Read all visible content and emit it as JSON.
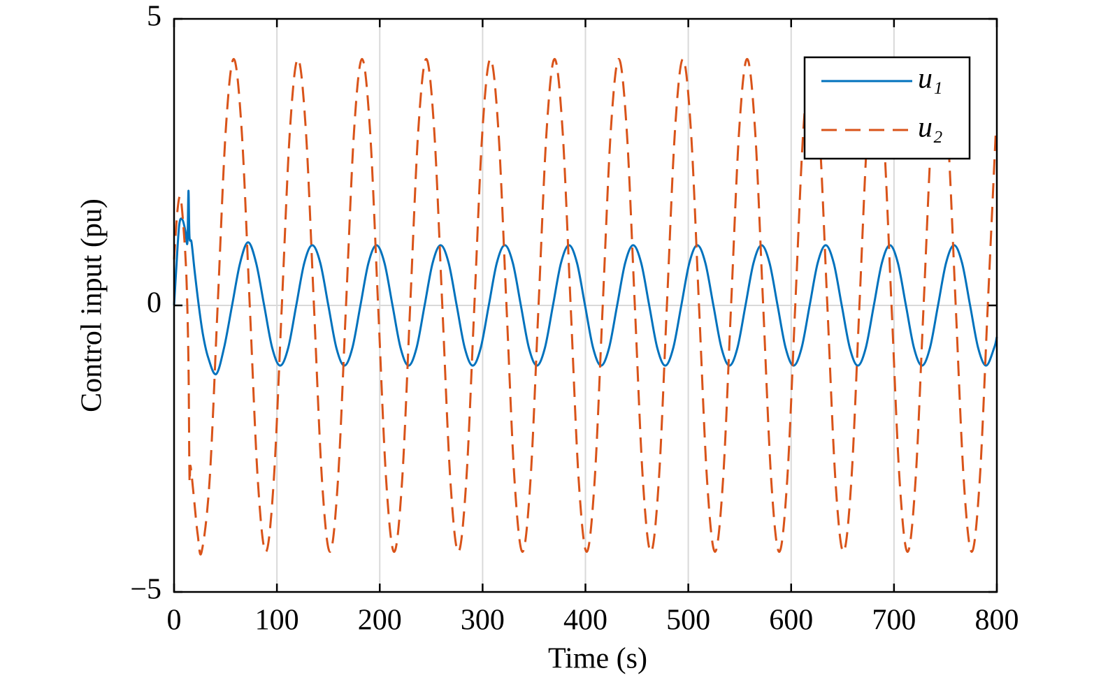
{
  "chart_data": {
    "type": "line",
    "xlabel": "Time (s)",
    "ylabel": "Control input (pu)",
    "xlim": [
      0,
      800
    ],
    "ylim": [
      -5,
      5
    ],
    "xticks": [
      0,
      100,
      200,
      300,
      400,
      500,
      600,
      700,
      800
    ],
    "yticks": [
      {
        "value": -5,
        "label": "−5"
      },
      0,
      5
    ],
    "grid": true,
    "legend": "upper right",
    "series": [
      {
        "name": "u₁",
        "color": "#0072BD",
        "dash": false,
        "x": [
          0,
          2,
          5,
          8,
          11,
          13,
          14,
          15,
          17,
          20,
          24,
          28,
          33,
          40.8,
          48.6,
          56.4,
          64.2,
          72,
          79.8,
          87.6,
          95.4,
          103.2,
          111,
          118.8,
          126.6,
          134.4,
          142.2,
          150,
          157.8,
          165.6,
          173.4,
          181.2,
          189,
          196.8,
          204.6,
          212.4,
          220.2,
          228,
          235.8,
          243.6,
          251.4,
          259.2,
          267,
          274.8,
          282.6,
          290.4,
          298.2,
          306,
          313.8,
          321.6,
          329.4,
          337.2,
          345,
          352.8,
          360.6,
          368.4,
          376.2,
          384,
          391.8,
          399.6,
          407.4,
          415.2,
          423,
          430.8,
          438.6,
          446.4,
          454.2,
          462,
          469.8,
          477.6,
          485.4,
          493.2,
          501,
          508.8,
          516.6,
          524.4,
          532.2,
          540,
          547.8,
          555.6,
          563.4,
          571.2,
          579,
          586.8,
          594.6,
          602.4,
          610.2,
          618,
          625.8,
          633.6,
          641.4,
          649.2,
          657,
          664.8,
          672.6,
          680.4,
          688.2,
          696,
          703.8,
          711.6,
          719.4,
          727.2,
          735,
          742.8,
          750.6,
          758.4,
          766.2,
          774,
          781.8,
          789.6,
          797.4,
          800
        ],
        "values": [
          0,
          0.6,
          1.4,
          1.5,
          1.3,
          1.1,
          2.0,
          1.2,
          1.1,
          0.6,
          0,
          -0.5,
          -0.9,
          -1.2,
          -0.74,
          0,
          0.74,
          1.1,
          0.74,
          0,
          -0.74,
          -1.05,
          -0.74,
          0,
          0.74,
          1.05,
          0.74,
          0,
          -0.74,
          -1.05,
          -0.74,
          0,
          0.74,
          1.05,
          0.74,
          0,
          -0.74,
          -1.05,
          -0.74,
          0,
          0.74,
          1.05,
          0.74,
          0,
          -0.74,
          -1.05,
          -0.74,
          0,
          0.74,
          1.05,
          0.74,
          0,
          -0.74,
          -1.05,
          -0.74,
          0,
          0.74,
          1.05,
          0.74,
          0,
          -0.74,
          -1.05,
          -0.74,
          0,
          0.74,
          1.05,
          0.74,
          0,
          -0.74,
          -1.05,
          -0.74,
          0,
          0.74,
          1.05,
          0.74,
          0,
          -0.74,
          -1.05,
          -0.74,
          0,
          0.74,
          1.05,
          0.74,
          0,
          -0.74,
          -1.05,
          -0.74,
          0,
          0.74,
          1.05,
          0.74,
          0,
          -0.74,
          -1.05,
          -0.74,
          0,
          0.74,
          1.05,
          0.74,
          0,
          -0.74,
          -1.05,
          -0.74,
          0,
          0.74,
          1.05,
          0.74,
          0,
          -0.74,
          -1.05,
          -0.74,
          -0.55
        ]
      },
      {
        "name": "u₂",
        "color": "#D95319",
        "dash": true,
        "x": [
          0,
          3,
          6,
          9,
          12,
          14,
          15,
          16,
          19,
          23,
          26.8,
          34.6,
          42.4,
          50.2,
          58,
          65.8,
          73.6,
          81.4,
          89.2,
          97,
          104.8,
          112.6,
          120.4,
          128.2,
          136,
          143.8,
          151.6,
          159.4,
          167.2,
          175,
          182.8,
          190.6,
          198.4,
          206.2,
          214,
          221.8,
          229.6,
          237.4,
          245.2,
          253,
          260.8,
          268.6,
          276.4,
          284.2,
          292,
          299.8,
          307.6,
          315.4,
          323.2,
          331,
          338.8,
          346.6,
          354.4,
          362.2,
          370,
          377.8,
          385.6,
          393.4,
          401.2,
          409,
          416.8,
          424.6,
          432.4,
          440.2,
          448,
          455.8,
          463.6,
          471.4,
          479.2,
          487,
          494.8,
          502.6,
          510.4,
          518.2,
          526,
          533.8,
          541.6,
          549.4,
          557.2,
          565,
          572.8,
          580.6,
          588.4,
          596.2,
          604,
          611.8,
          619.6,
          627.4,
          635.2,
          643,
          650.8,
          658.6,
          666.4,
          674.2,
          682,
          689.8,
          697.6,
          705.4,
          713.2,
          721,
          728.8,
          736.6,
          744.4,
          752.2,
          760,
          767.8,
          775.6,
          783.4,
          791.2,
          799
        ],
        "values": [
          0.8,
          1.6,
          1.9,
          1.4,
          0.5,
          -1.0,
          -3.0,
          -2.8,
          -3.3,
          -4.0,
          -4.3,
          -3.04,
          0,
          3.04,
          4.3,
          3.04,
          0,
          -3.04,
          -4.3,
          -3.04,
          0,
          3.04,
          4.3,
          3.04,
          0,
          -3.04,
          -4.3,
          -3.04,
          0,
          3.04,
          4.3,
          3.04,
          0,
          -3.04,
          -4.3,
          -3.04,
          0,
          3.04,
          4.3,
          3.04,
          0,
          -3.04,
          -4.3,
          -3.04,
          0,
          3.04,
          4.3,
          3.04,
          0,
          -3.04,
          -4.3,
          -3.04,
          0,
          3.04,
          4.3,
          3.04,
          0,
          -3.04,
          -4.3,
          -3.04,
          0,
          3.04,
          4.3,
          3.04,
          0,
          -3.04,
          -4.3,
          -3.04,
          0,
          3.04,
          4.3,
          3.04,
          0,
          -3.04,
          -4.3,
          -3.04,
          0,
          3.04,
          4.3,
          3.04,
          0,
          -3.04,
          -4.3,
          -3.04,
          0,
          3.04,
          4.3,
          3.04,
          0,
          -3.04,
          -4.3,
          -3.04,
          0,
          3.04,
          4.3,
          3.04,
          0,
          -3.04,
          -4.3,
          -3.04,
          0,
          3.04,
          4.3,
          3.04,
          0,
          -3.04,
          -4.3,
          -3.04,
          0,
          3.04
        ]
      }
    ]
  }
}
